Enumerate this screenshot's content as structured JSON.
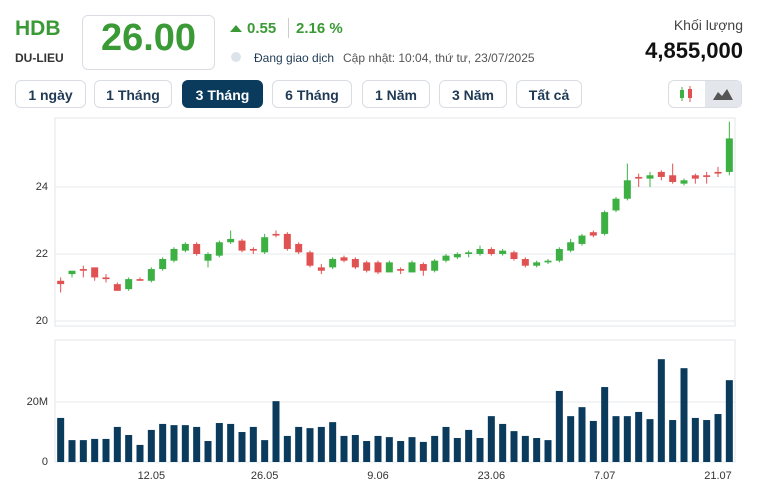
{
  "header": {
    "symbol": "HDB",
    "exchange": "DU-LIEU",
    "price": "26.00",
    "change": "0.55",
    "change_pct": "2.16 %",
    "status": "Đang giao dịch",
    "updated": "Cập nhật: 10:04, thứ tư, 23/07/2025",
    "volume_label": "Khối lượng",
    "volume": "4,855,000"
  },
  "ranges": [
    "1 ngày",
    "1 Tháng",
    "3 Tháng",
    "6 Tháng",
    "1 Năm",
    "3 Năm",
    "Tất cả"
  ],
  "active_range": 2,
  "chart_data": [
    {
      "type": "candlestick",
      "up_color": "#3cb043",
      "down_color": "#e05252",
      "grid": true,
      "ylim": [
        19.85,
        26.06
      ],
      "yticks": [
        20,
        22,
        24
      ],
      "open": [
        21.2,
        21.4,
        21.55,
        21.6,
        21.3,
        21.1,
        20.95,
        21.25,
        21.2,
        21.55,
        21.8,
        22.1,
        22.3,
        21.8,
        21.95,
        22.35,
        22.4,
        22.15,
        22.05,
        22.6,
        22.6,
        22.3,
        22.05,
        21.6,
        21.6,
        21.9,
        21.85,
        21.75,
        21.75,
        21.45,
        21.55,
        21.45,
        21.7,
        21.5,
        21.8,
        21.9,
        22.0,
        22.0,
        22.15,
        22.0,
        22.05,
        21.85,
        21.65,
        21.75,
        21.8,
        22.1,
        22.3,
        22.65,
        22.6,
        23.3,
        23.65,
        24.3,
        24.25,
        24.45,
        24.35,
        24.1,
        24.35,
        24.35,
        24.45,
        24.45
      ],
      "high": [
        21.3,
        21.5,
        21.65,
        21.6,
        21.4,
        21.15,
        21.3,
        21.3,
        21.6,
        21.9,
        22.2,
        22.35,
        22.35,
        22.05,
        22.4,
        22.7,
        22.45,
        22.2,
        22.6,
        22.7,
        22.65,
        22.35,
        22.1,
        21.7,
        21.9,
        21.95,
        21.9,
        21.8,
        21.8,
        21.8,
        21.6,
        21.8,
        21.75,
        21.85,
        22.0,
        22.05,
        22.1,
        22.25,
        22.2,
        22.15,
        22.1,
        21.9,
        21.8,
        21.85,
        22.2,
        22.45,
        22.6,
        22.7,
        23.3,
        23.7,
        24.7,
        24.4,
        24.45,
        24.5,
        24.7,
        24.25,
        24.4,
        24.45,
        24.6,
        25.95
      ],
      "low": [
        20.85,
        21.3,
        21.3,
        21.2,
        21.15,
        20.9,
        20.9,
        21.2,
        21.15,
        21.5,
        21.75,
        22.05,
        21.95,
        21.6,
        21.9,
        22.3,
        22.05,
        22.0,
        22.0,
        22.5,
        22.1,
        22.0,
        21.6,
        21.4,
        21.55,
        21.75,
        21.55,
        21.45,
        21.4,
        21.45,
        21.4,
        21.45,
        21.35,
        21.45,
        21.75,
        21.85,
        21.9,
        21.95,
        21.95,
        21.95,
        21.8,
        21.6,
        21.6,
        21.7,
        21.75,
        22.05,
        22.25,
        22.5,
        22.55,
        23.25,
        23.6,
        24.0,
        24.0,
        24.2,
        24.1,
        24.05,
        24.1,
        24.1,
        24.3,
        24.35
      ],
      "close": [
        21.1,
        21.5,
        21.5,
        21.3,
        21.25,
        20.9,
        21.25,
        21.2,
        21.55,
        21.85,
        22.15,
        22.3,
        22.0,
        22.0,
        22.35,
        22.45,
        22.1,
        22.1,
        22.5,
        22.55,
        22.15,
        22.05,
        21.65,
        21.5,
        21.85,
        21.8,
        21.6,
        21.5,
        21.45,
        21.75,
        21.5,
        21.75,
        21.5,
        21.8,
        21.95,
        22.0,
        22.05,
        22.15,
        22.0,
        22.1,
        21.85,
        21.65,
        21.75,
        21.8,
        22.15,
        22.35,
        22.55,
        22.55,
        23.25,
        23.65,
        24.2,
        24.25,
        24.35,
        24.3,
        24.15,
        24.2,
        24.25,
        24.3,
        24.4,
        25.45
      ]
    },
    {
      "type": "bar",
      "color": "#0b3b5c",
      "grid": true,
      "ylim": [
        0,
        40700000
      ],
      "yticks": [
        0,
        {
          "value": 20000000,
          "label": "20M"
        }
      ],
      "categories": [
        null,
        null,
        null,
        null,
        null,
        null,
        null,
        null,
        "12.05",
        null,
        null,
        null,
        null,
        null,
        null,
        null,
        null,
        null,
        "26.05",
        null,
        null,
        null,
        null,
        null,
        null,
        null,
        null,
        null,
        "9.06",
        null,
        null,
        null,
        null,
        null,
        null,
        null,
        null,
        null,
        "23.06",
        null,
        null,
        null,
        null,
        null,
        null,
        null,
        null,
        null,
        "7.07",
        null,
        null,
        null,
        null,
        null,
        null,
        null,
        null,
        null,
        "21.07",
        null
      ],
      "values": [
        14700000,
        7300000,
        7300000,
        7700000,
        7700000,
        11700000,
        9000000,
        5700000,
        10700000,
        12700000,
        12300000,
        12300000,
        11700000,
        7000000,
        13000000,
        12700000,
        10000000,
        11700000,
        7300000,
        20300000,
        8700000,
        11700000,
        11300000,
        11700000,
        13300000,
        8700000,
        9000000,
        7000000,
        8700000,
        8300000,
        7000000,
        8300000,
        6700000,
        8700000,
        11700000,
        8000000,
        10700000,
        8000000,
        15300000,
        12700000,
        10300000,
        8700000,
        8000000,
        7300000,
        23700000,
        15300000,
        18300000,
        13700000,
        25000000,
        15300000,
        15300000,
        16700000,
        14300000,
        34300000,
        14000000,
        31300000,
        14700000,
        14000000,
        16000000,
        27300000
      ]
    }
  ]
}
